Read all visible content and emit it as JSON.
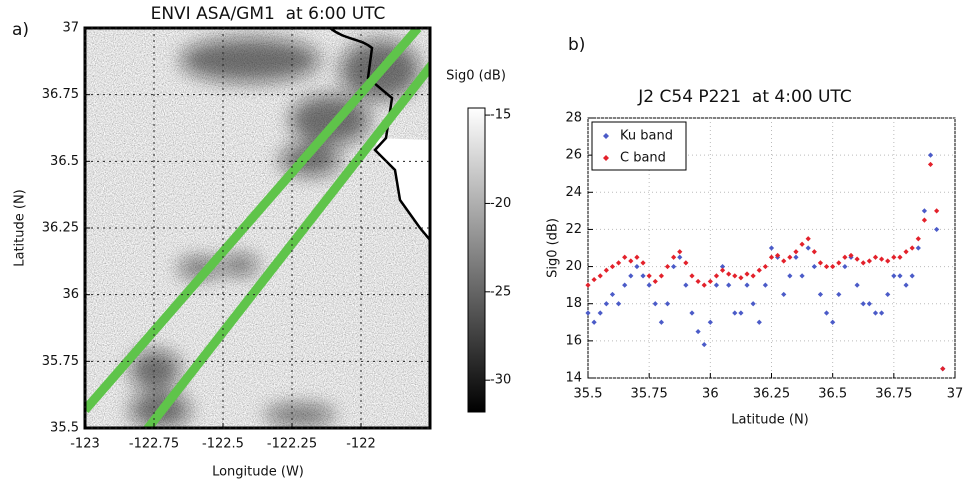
{
  "chart_data": [
    {
      "type": "image",
      "panel_label": "a)",
      "title": "ENVI ASA/GM1  at 6:00 UTC",
      "x_label": "Longitude (W)",
      "y_label": "Latitude (N)",
      "xlim": [
        -123,
        -121.75
      ],
      "ylim": [
        35.5,
        37
      ],
      "xticks": [
        -123,
        -122.75,
        -122.5,
        -122.25,
        -122
      ],
      "yticks": [
        35.5,
        35.75,
        36,
        36.25,
        36.5,
        36.75,
        37
      ],
      "grid": true,
      "colorbar": {
        "label": "Sig0 (dB)",
        "lim": [
          -31.8,
          -14.6
        ],
        "ticks": [
          -15,
          -20,
          -25,
          -30
        ]
      }
    },
    {
      "type": "scatter",
      "panel_label": "b)",
      "title": "J2 C54 P221  at 4:00 UTC",
      "x_label": "Latitude (N)",
      "y_label": "Sig0 (dB)",
      "xlim": [
        35.5,
        37
      ],
      "ylim": [
        14,
        28
      ],
      "xticks": [
        35.5,
        35.75,
        36,
        36.25,
        36.5,
        36.75,
        37
      ],
      "yticks": [
        14,
        16,
        18,
        20,
        22,
        24,
        26,
        28
      ],
      "grid": true,
      "legend": "upper left",
      "x": [
        35.5,
        35.525,
        35.55,
        35.575,
        35.6,
        35.625,
        35.65,
        35.675,
        35.7,
        35.725,
        35.75,
        35.775,
        35.8,
        35.825,
        35.85,
        35.875,
        35.9,
        35.925,
        35.95,
        35.975,
        36,
        36.025,
        36.05,
        36.075,
        36.1,
        36.125,
        36.15,
        36.175,
        36.2,
        36.225,
        36.25,
        36.275,
        36.3,
        36.325,
        36.35,
        36.375,
        36.4,
        36.425,
        36.45,
        36.475,
        36.5,
        36.525,
        36.55,
        36.575,
        36.6,
        36.625,
        36.65,
        36.675,
        36.7,
        36.725,
        36.75,
        36.775,
        36.8,
        36.825,
        36.85,
        36.875,
        36.9,
        36.925,
        36.95
      ],
      "series": [
        {
          "name": "Ku band",
          "color": "#4b5bc8",
          "values": [
            17.5,
            17,
            17.5,
            18,
            18.5,
            18,
            19,
            19.5,
            20,
            19.5,
            19,
            18,
            17,
            18,
            20,
            20.5,
            19,
            17.5,
            16.5,
            15.8,
            17,
            19,
            20,
            19,
            17.5,
            17.5,
            19,
            18,
            17,
            19,
            21,
            20.5,
            18.5,
            19.5,
            20.5,
            19.5,
            21,
            20,
            18.5,
            17.5,
            17,
            18.5,
            20,
            20.5,
            19,
            18,
            18,
            17.5,
            17.5,
            18.5,
            19.5,
            19.5,
            19,
            19.5,
            21,
            23,
            26,
            22,
            14.5
          ]
        },
        {
          "name": "C band",
          "color": "#e3212b",
          "values": [
            19,
            19.3,
            19.5,
            19.8,
            20,
            20.2,
            20.5,
            20.3,
            20.5,
            20.2,
            19.5,
            19.2,
            19.5,
            20,
            20.5,
            20.8,
            20.2,
            19.5,
            19.2,
            19,
            19.2,
            19.5,
            19.8,
            19.6,
            19.5,
            19.4,
            19.6,
            19.5,
            19.8,
            20,
            20.5,
            20.6,
            20.3,
            20.5,
            20.8,
            21.2,
            21.5,
            20.8,
            20.2,
            20,
            20,
            20.2,
            20.5,
            20.6,
            20.4,
            20.2,
            20.3,
            20.5,
            20.4,
            20.3,
            20.5,
            20.5,
            20.8,
            21,
            21.5,
            22.5,
            25.5,
            23,
            14.5
          ]
        }
      ]
    }
  ]
}
